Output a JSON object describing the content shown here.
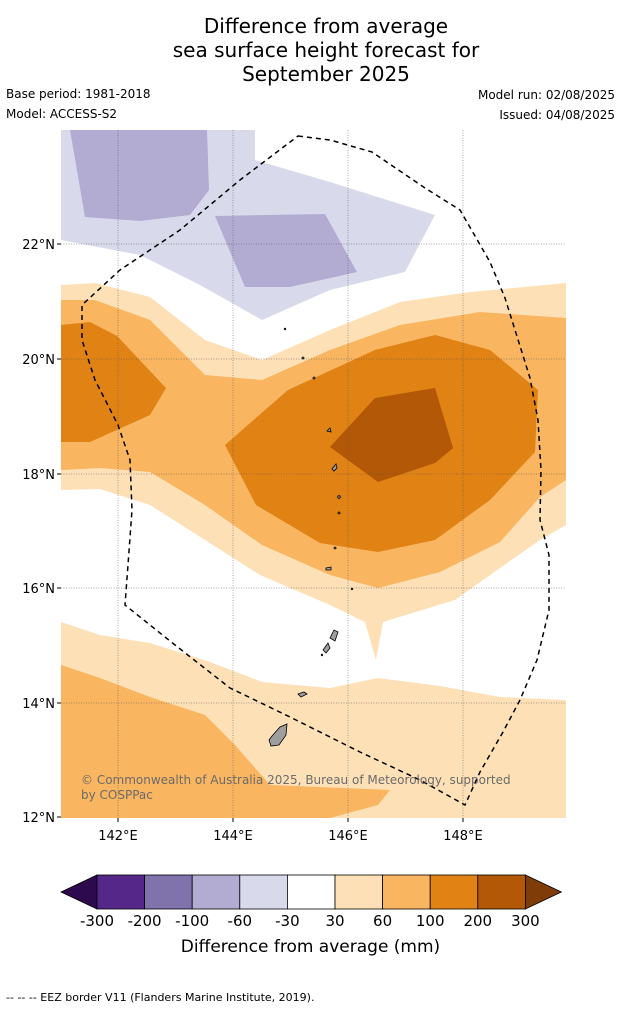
{
  "title": {
    "line1": "Difference from average",
    "line2": "sea surface height forecast for",
    "line3": "September 2025"
  },
  "meta": {
    "base_period": "Base period: 1981-2018",
    "model": "Model: ACCESS-S2",
    "model_run": "Model run: 02/08/2025",
    "issued": "Issued: 04/08/2025"
  },
  "map": {
    "lat_labels": [
      "22°N",
      "20°N",
      "18°N",
      "16°N",
      "14°N",
      "12°N"
    ],
    "lon_labels": [
      "142°E",
      "144°E",
      "146°E",
      "148°E"
    ],
    "credit": "© Commonwealth of Australia 2025, Bureau of Meteorology, supported by COSPPac"
  },
  "colorbar": {
    "labels": [
      "-300",
      "-200",
      "-100",
      "-60",
      "-30",
      "30",
      "60",
      "100",
      "200",
      "300"
    ],
    "colors": [
      "#2d0a4e",
      "#542788",
      "#8073ac",
      "#b2abd2",
      "#d8daeb",
      "#ffffff",
      "#fee0b6",
      "#f9b55f",
      "#e08214",
      "#b35806",
      "#7f3b08"
    ],
    "title": "Difference from average (mm)"
  },
  "footnote": "--  --  -- EEZ border V11 (Flanders Marine Institute, 2019)."
}
